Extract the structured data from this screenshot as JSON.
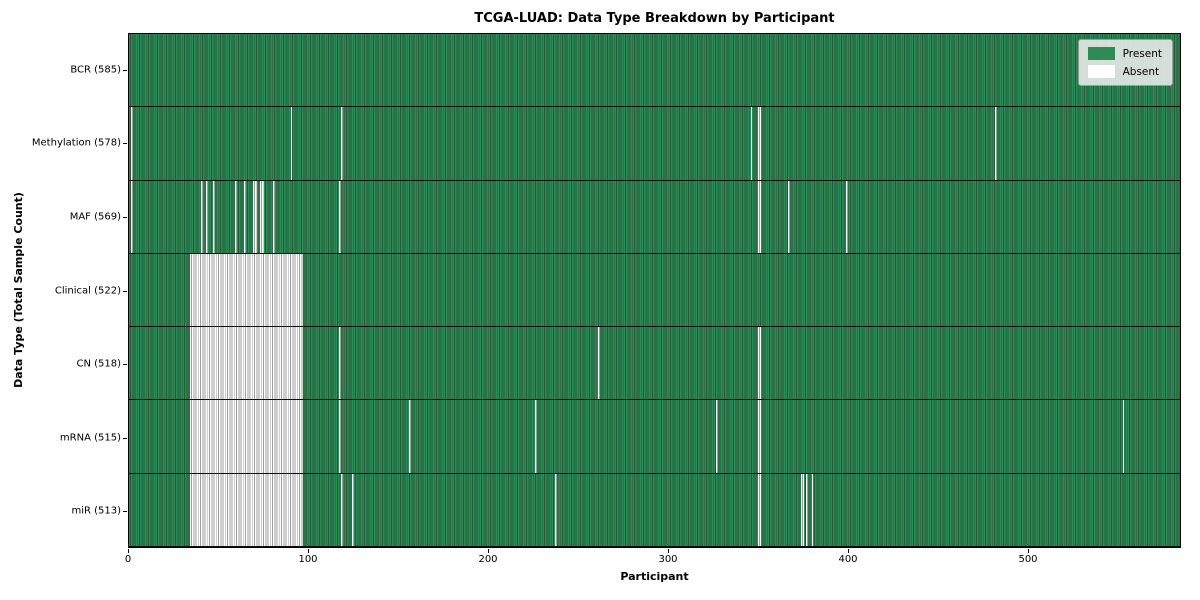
{
  "chart_data": {
    "type": "heatmap",
    "title": "TCGA-LUAD: Data Type Breakdown by Participant",
    "xlabel": "Participant",
    "ylabel": "Data Type (Total Sample Count)",
    "x_ticks": [
      0,
      100,
      200,
      300,
      400,
      500
    ],
    "x_range": [
      0,
      585
    ],
    "n_participants": 585,
    "grid": false,
    "legend_position": "upper-right",
    "legend": [
      {
        "label": "Present",
        "color": "#2e8b57"
      },
      {
        "label": "Absent",
        "color": "#ffffff"
      }
    ],
    "colors": {
      "present_fill": "#2e8b57",
      "present_edge": "#1e5c3a",
      "absent_fill": "#ffffff",
      "absent_edge": "#9e9e9e",
      "row_divider": "#0d0d0d"
    },
    "rows": [
      {
        "label": "BCR (585)",
        "data_type": "BCR",
        "present_count": 585,
        "absent_ranges": []
      },
      {
        "label": "Methylation (578)",
        "data_type": "Methylation",
        "present_count": 578,
        "absent_ranges": [
          [
            1,
            1
          ],
          [
            90,
            90
          ],
          [
            118,
            118
          ],
          [
            346,
            346
          ],
          [
            350,
            351
          ],
          [
            482,
            482
          ]
        ]
      },
      {
        "label": "MAF (569)",
        "data_type": "MAF",
        "present_count": 569,
        "absent_ranges": [
          [
            1,
            1
          ],
          [
            40,
            40
          ],
          [
            43,
            43
          ],
          [
            47,
            47
          ],
          [
            59,
            59
          ],
          [
            64,
            64
          ],
          [
            69,
            70
          ],
          [
            73,
            74
          ],
          [
            80,
            80
          ],
          [
            117,
            117
          ],
          [
            350,
            351
          ],
          [
            367,
            367
          ],
          [
            399,
            399
          ]
        ]
      },
      {
        "label": "Clinical (522)",
        "data_type": "Clinical",
        "present_count": 522,
        "absent_ranges": [
          [
            34,
            96
          ]
        ]
      },
      {
        "label": "CN (518)",
        "data_type": "CN",
        "present_count": 518,
        "absent_ranges": [
          [
            34,
            96
          ],
          [
            117,
            117
          ],
          [
            261,
            261
          ],
          [
            350,
            351
          ]
        ]
      },
      {
        "label": "mRNA (515)",
        "data_type": "mRNA",
        "present_count": 515,
        "absent_ranges": [
          [
            34,
            96
          ],
          [
            117,
            117
          ],
          [
            156,
            156
          ],
          [
            226,
            226
          ],
          [
            327,
            327
          ],
          [
            350,
            351
          ],
          [
            553,
            553
          ]
        ]
      },
      {
        "label": "miR (513)",
        "data_type": "miR",
        "present_count": 513,
        "absent_ranges": [
          [
            34,
            96
          ],
          [
            118,
            118
          ],
          [
            124,
            124
          ],
          [
            237,
            237
          ],
          [
            350,
            351
          ],
          [
            374,
            375
          ],
          [
            377,
            377
          ],
          [
            380,
            380
          ]
        ]
      }
    ]
  }
}
